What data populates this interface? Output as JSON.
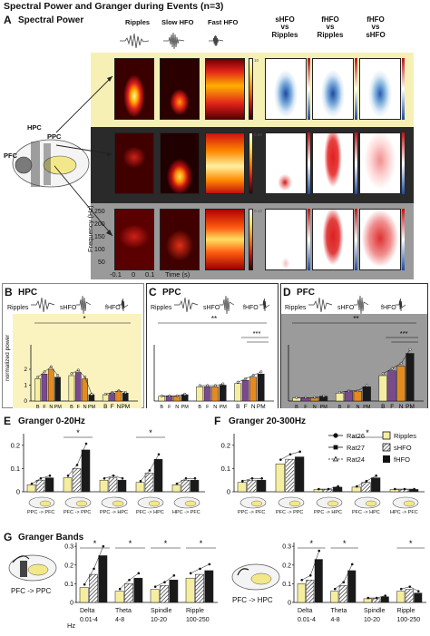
{
  "figure_title": "Spectral Power and Granger during Events (n=3)",
  "panel_a": {
    "letter": "A",
    "title": "Spectral Power",
    "columns": [
      "Ripples",
      "Slow HFO",
      "Fast HFO"
    ],
    "comparisons": [
      "sHFO\nvs\nRipples",
      "fHFO\nvs\nRipples",
      "fHFO\nvs\nsHFO"
    ],
    "brain_labels": [
      "HPC",
      "PPC",
      "PFC"
    ],
    "ylabel": "Frequency (Hz)",
    "yticks": [
      "250",
      "200",
      "150",
      "100",
      "50"
    ],
    "xticks": [
      "-0.1",
      "0",
      "0.1"
    ],
    "xlabel": "Time (s)",
    "colorbar_ticks": [
      "10",
      "0.08",
      "0.14"
    ],
    "row_colors": [
      "#f7f0b5",
      "#2a2a2a",
      "#9a9a9a"
    ]
  },
  "panel_b": {
    "letter": "B",
    "title": "HPC",
    "legend": [
      "Ripples",
      "sHFO",
      "fHFO"
    ],
    "ylabel": "normalized power",
    "yticks": [
      "2",
      "1",
      "0"
    ],
    "xticks": [
      "B",
      "F",
      "N",
      "PM"
    ],
    "sig": [
      "*"
    ],
    "bg": "#faf3c0"
  },
  "panel_c": {
    "letter": "C",
    "title": "PPC",
    "legend": [
      "Ripples",
      "sHFO",
      "fHFO"
    ],
    "xticks": [
      "B",
      "F",
      "N",
      "PM"
    ],
    "sig": [
      "**",
      "***"
    ],
    "bg": "#ffffff"
  },
  "panel_d": {
    "letter": "D",
    "title": "PFC",
    "legend": [
      "Ripples",
      "sHFO",
      "fHFO"
    ],
    "xticks": [
      "B",
      "F",
      "N",
      "PM"
    ],
    "sig": [
      "**",
      "***"
    ],
    "bg": "#9b9b9b"
  },
  "panel_e": {
    "letter": "E",
    "title": "Granger 0-20Hz",
    "yticks": [
      "0.2",
      "0.1",
      "0"
    ],
    "directions": [
      "PPC -> PFC",
      "PFC -> PPC",
      "PPC -> HPC",
      "PFC -> HPC",
      "HPC -> PFC"
    ],
    "sig": [
      "*",
      "*"
    ]
  },
  "panel_f": {
    "letter": "F",
    "title": "Granger 20-300Hz",
    "yticks": [
      "0.2",
      "0.1",
      "0"
    ],
    "directions": [
      "PPC -> PFC",
      "PFC -> PPC",
      "PPC -> HPC",
      "PFC -> HPC",
      "HPC -> PFC"
    ],
    "sig": [
      "*"
    ],
    "legend_rats": [
      "Rat26",
      "Rat27",
      "Rat24"
    ],
    "legend_events": [
      "Ripples",
      "sHFO",
      "fHFO"
    ]
  },
  "panel_g": {
    "letter": "G",
    "title": "Granger Bands",
    "left_label": "PFC -> PPC",
    "right_label": "PFC -> HPC",
    "yticks": [
      "0.3",
      "0.2",
      "0.1",
      "0"
    ],
    "hz_label": "Hz",
    "bands": [
      "Delta",
      "Theta",
      "Spindle",
      "Ripple"
    ],
    "band_ranges": [
      "0.01-4",
      "4-8",
      "10-20",
      "100-250"
    ],
    "sig_left": [
      "*",
      "*",
      "*",
      "*"
    ],
    "sig_right": [
      "*",
      "*",
      "*"
    ]
  },
  "colors": {
    "ripple_bar": "#f5eea0",
    "shfo_bar": "#7a4a8c",
    "fhfo_bar": "#e58a1f",
    "black_bar": "#1a1a1a"
  }
}
